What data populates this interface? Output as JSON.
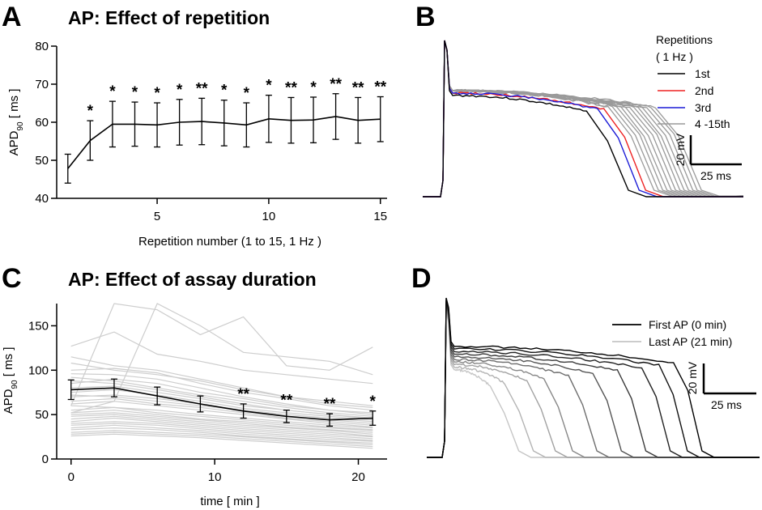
{
  "panels": {
    "A": {
      "letter": "A"
    },
    "B": {
      "letter": "B"
    },
    "C": {
      "letter": "C"
    },
    "D": {
      "letter": "D"
    }
  },
  "chart_data": [
    {
      "panel": "A",
      "type": "line",
      "title": "AP: Effect of repetition",
      "xlabel": "Repetition number (1 to 15, 1 Hz )",
      "ylabel_main": "APD",
      "ylabel_sub": "90",
      "ylabel_unit": " [ ms ]",
      "xlim": [
        0.5,
        15.3
      ],
      "ylim": [
        40,
        80
      ],
      "xticks": [
        5,
        10,
        15
      ],
      "yticks": [
        40,
        50,
        60,
        70,
        80
      ],
      "x": [
        1,
        2,
        3,
        4,
        5,
        6,
        7,
        8,
        9,
        10,
        11,
        12,
        13,
        14,
        15
      ],
      "y": [
        47.8,
        55.2,
        59.5,
        59.5,
        59.3,
        60.0,
        60.2,
        59.8,
        59.3,
        60.9,
        60.5,
        60.6,
        61.5,
        60.5,
        60.8
      ],
      "err": [
        3.8,
        5.2,
        6.0,
        5.8,
        5.8,
        6.0,
        6.1,
        6.0,
        5.8,
        6.2,
        6.0,
        6.0,
        6.0,
        6.0,
        5.9
      ],
      "significance": [
        "",
        "*",
        "*",
        "*",
        "*",
        "*",
        "**",
        "*",
        "*",
        "*",
        "**",
        "*",
        "**",
        "**",
        "**"
      ]
    },
    {
      "panel": "B",
      "type": "line",
      "title": "",
      "legend_title_1": "Repetitions",
      "legend_title_2": "( 1 Hz )",
      "series": [
        {
          "name": "1st",
          "color": "#000000",
          "plateau_end": 0.66
        },
        {
          "name": "2nd",
          "color": "#ee2222",
          "plateau_end": 0.74
        },
        {
          "name": "3rd",
          "color": "#1a1ad6",
          "plateau_end": 0.71
        },
        {
          "name": "4 -15th",
          "color": "#9a9a9a",
          "plateau_end": [
            0.76,
            0.78,
            0.8,
            0.82,
            0.84,
            0.86,
            0.88,
            0.9,
            0.92,
            0.94,
            0.96,
            0.98
          ]
        }
      ],
      "scale_bar": {
        "voltage": "20 mV",
        "time": "25 ms"
      }
    },
    {
      "panel": "C",
      "type": "line",
      "title": "AP: Effect of assay duration",
      "xlabel": "time [ min ]",
      "ylabel_main": "APD",
      "ylabel_sub": "90",
      "ylabel_unit": " [ ms ]",
      "xlim": [
        -1,
        22
      ],
      "ylim": [
        0,
        175
      ],
      "xticks": [
        0,
        10,
        20
      ],
      "yticks": [
        0,
        50,
        100,
        150
      ],
      "x": [
        0,
        3,
        6,
        9,
        12,
        15,
        18,
        21
      ],
      "mean": [
        78,
        80,
        71,
        62,
        54,
        48,
        44,
        46
      ],
      "err": [
        11,
        10,
        10,
        9,
        8,
        7,
        7,
        8
      ],
      "significance": [
        "",
        "",
        "",
        "",
        "**",
        "**",
        "**",
        "*"
      ],
      "individual_cells": [
        [
          127,
          143,
          118,
          110,
          100,
          95,
          90,
          85
        ],
        [
          115,
          105,
          100,
          90,
          80,
          70,
          65,
          60
        ],
        [
          108,
          100,
          95,
          88,
          78,
          70,
          62,
          58
        ],
        [
          100,
          102,
          97,
          85,
          75,
          68,
          60,
          55
        ],
        [
          96,
          95,
          90,
          80,
          70,
          62,
          55,
          50
        ],
        [
          92,
          88,
          80,
          72,
          65,
          58,
          52,
          48
        ],
        [
          88,
          85,
          78,
          70,
          62,
          55,
          50,
          45
        ],
        [
          85,
          90,
          85,
          75,
          68,
          60,
          55,
          52
        ],
        [
          80,
          82,
          75,
          68,
          60,
          55,
          50,
          46
        ],
        [
          75,
          78,
          72,
          65,
          57,
          52,
          48,
          44
        ],
        [
          72,
          70,
          65,
          60,
          55,
          50,
          46,
          42
        ],
        [
          70,
          72,
          68,
          62,
          55,
          48,
          44,
          40
        ],
        [
          65,
          68,
          62,
          58,
          52,
          46,
          42,
          38
        ],
        [
          62,
          65,
          60,
          55,
          50,
          45,
          40,
          36
        ],
        [
          60,
          58,
          55,
          50,
          46,
          42,
          38,
          35
        ],
        [
          55,
          58,
          52,
          48,
          44,
          40,
          36,
          33
        ],
        [
          52,
          55,
          50,
          45,
          42,
          38,
          35,
          32
        ],
        [
          50,
          52,
          48,
          44,
          40,
          36,
          33,
          30
        ],
        [
          48,
          50,
          46,
          42,
          38,
          35,
          32,
          28
        ],
        [
          45,
          48,
          44,
          40,
          36,
          33,
          30,
          26
        ],
        [
          42,
          46,
          42,
          38,
          34,
          31,
          28,
          25
        ],
        [
          40,
          42,
          40,
          36,
          32,
          29,
          26,
          23
        ],
        [
          38,
          40,
          38,
          34,
          30,
          27,
          24,
          21
        ],
        [
          35,
          38,
          35,
          32,
          28,
          25,
          22,
          20
        ],
        [
          33,
          35,
          33,
          30,
          26,
          23,
          20,
          18
        ],
        [
          30,
          32,
          30,
          28,
          25,
          22,
          19,
          16
        ],
        [
          28,
          30,
          28,
          26,
          23,
          20,
          17,
          14
        ],
        [
          26,
          28,
          26,
          24,
          21,
          18,
          15,
          12
        ],
        [
          60,
          175,
          168,
          140,
          160,
          105,
          100,
          126
        ],
        [
          52,
          65,
          175,
          150,
          120,
          115,
          110,
          95
        ]
      ]
    },
    {
      "panel": "D",
      "type": "line",
      "title": "",
      "series": [
        {
          "name": "First AP (0 min)",
          "color": "#000000"
        },
        {
          "name": "Last AP (21 min)",
          "color": "#c4c4c4"
        }
      ],
      "trace_plateau_end": [
        0.93,
        0.87,
        0.8,
        0.7,
        0.6,
        0.5,
        0.4,
        0.33,
        0.24,
        0.18
      ],
      "trace_colors": [
        "#000000",
        "#111111",
        "#222222",
        "#3a3a3a",
        "#555555",
        "#6e6e6e",
        "#888888",
        "#a2a2a2",
        "#b4b4b4",
        "#c6c6c6"
      ],
      "scale_bar": {
        "voltage": "20 mV",
        "time": "25 ms"
      }
    }
  ]
}
